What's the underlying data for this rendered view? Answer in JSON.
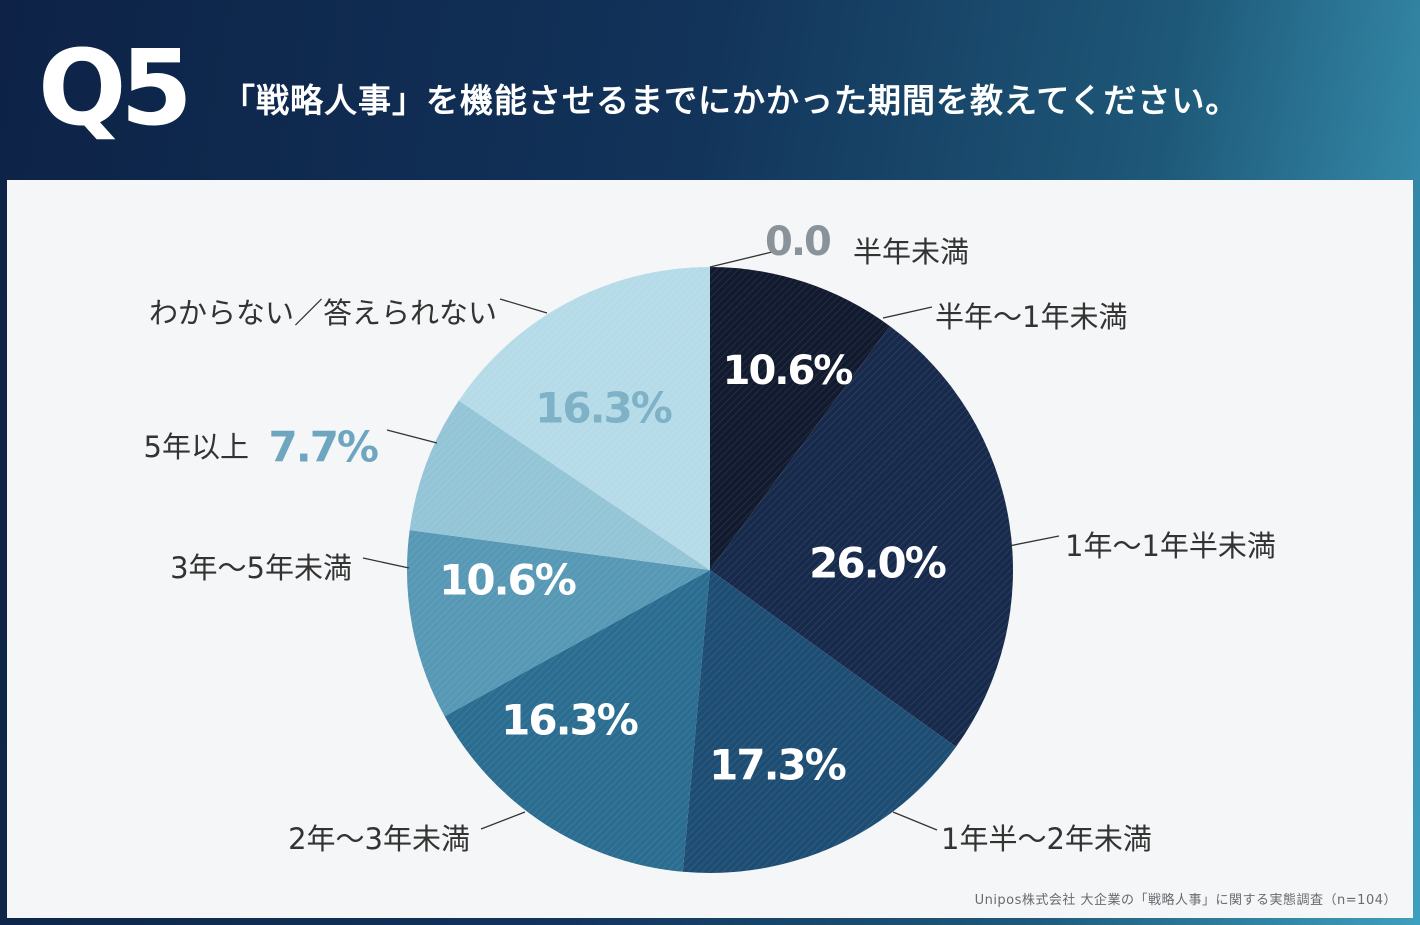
{
  "header": {
    "question_number": "Q5",
    "question_text": "「戦略人事」を機能させるまでにかかった期間を教えてください。"
  },
  "source": "Unipos株式会社 大企業の「戦略人事」に関する実態調査（n=104）",
  "chart_data": {
    "type": "pie",
    "slices": [
      {
        "label": "半年未満",
        "value": 0.0,
        "value_label": "0.0",
        "color": "#0e1c33"
      },
      {
        "label": "半年〜1年未満",
        "value": 10.6,
        "value_label": "10.6%",
        "color": "#111a2e"
      },
      {
        "label": "1年〜1年半未満",
        "value": 26.0,
        "value_label": "26.0%",
        "color": "#172a4c"
      },
      {
        "label": "1年半〜2年未満",
        "value": 17.3,
        "value_label": "17.3%",
        "color": "#1e4d74"
      },
      {
        "label": "2年〜3年未満",
        "value": 16.3,
        "value_label": "16.3%",
        "color": "#2b6d90"
      },
      {
        "label": "3年〜5年未満",
        "value": 10.6,
        "value_label": "10.6%",
        "color": "#5798b5"
      },
      {
        "label": "5年以上",
        "value": 7.7,
        "value_label": "7.7%",
        "color": "#94c5d7"
      },
      {
        "label": "わからない／答えられない",
        "value": 16.3,
        "value_label": "16.3%",
        "color": "#b6dbe8"
      }
    ]
  }
}
